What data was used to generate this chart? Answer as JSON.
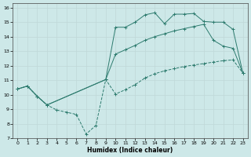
{
  "xlabel": "Humidex (Indice chaleur)",
  "background_color": "#cde8e8",
  "grid_color": "#c0d8d8",
  "line_color": "#2d7b6e",
  "xlim": [
    -0.5,
    23.5
  ],
  "ylim": [
    7,
    16.3
  ],
  "xticks": [
    0,
    1,
    2,
    3,
    4,
    5,
    6,
    7,
    8,
    9,
    10,
    11,
    12,
    13,
    14,
    15,
    16,
    17,
    18,
    19,
    20,
    21,
    22,
    23
  ],
  "yticks": [
    7,
    8,
    9,
    10,
    11,
    12,
    13,
    14,
    15,
    16
  ],
  "line1_x": [
    0,
    1,
    2,
    3,
    4,
    5,
    6,
    7,
    8,
    9,
    10,
    11,
    12,
    13,
    14,
    15,
    16,
    17,
    18,
    19,
    20,
    21,
    22,
    23
  ],
  "line1_y": [
    10.4,
    10.6,
    9.9,
    9.3,
    8.95,
    8.8,
    8.65,
    7.3,
    7.9,
    11.05,
    10.05,
    10.35,
    10.7,
    11.15,
    11.45,
    11.65,
    11.8,
    11.95,
    12.05,
    12.15,
    12.25,
    12.35,
    12.4,
    11.5
  ],
  "line2_x": [
    0,
    1,
    2,
    3,
    9,
    10,
    11,
    12,
    13,
    14,
    15,
    16,
    17,
    18,
    19,
    20,
    21,
    22,
    23
  ],
  "line2_y": [
    10.4,
    10.6,
    9.9,
    9.3,
    11.05,
    12.8,
    13.1,
    13.4,
    13.75,
    14.0,
    14.2,
    14.4,
    14.55,
    14.7,
    14.85,
    13.75,
    13.35,
    13.2,
    11.5
  ],
  "line3_x": [
    0,
    1,
    2,
    3,
    9,
    10,
    11,
    12,
    13,
    14,
    15,
    16,
    17,
    18,
    19,
    20,
    21,
    22,
    23
  ],
  "line3_y": [
    10.4,
    10.6,
    9.9,
    9.3,
    11.05,
    14.65,
    14.65,
    15.0,
    15.5,
    15.65,
    14.9,
    15.55,
    15.55,
    15.6,
    15.05,
    15.0,
    15.0,
    14.5,
    11.5
  ]
}
